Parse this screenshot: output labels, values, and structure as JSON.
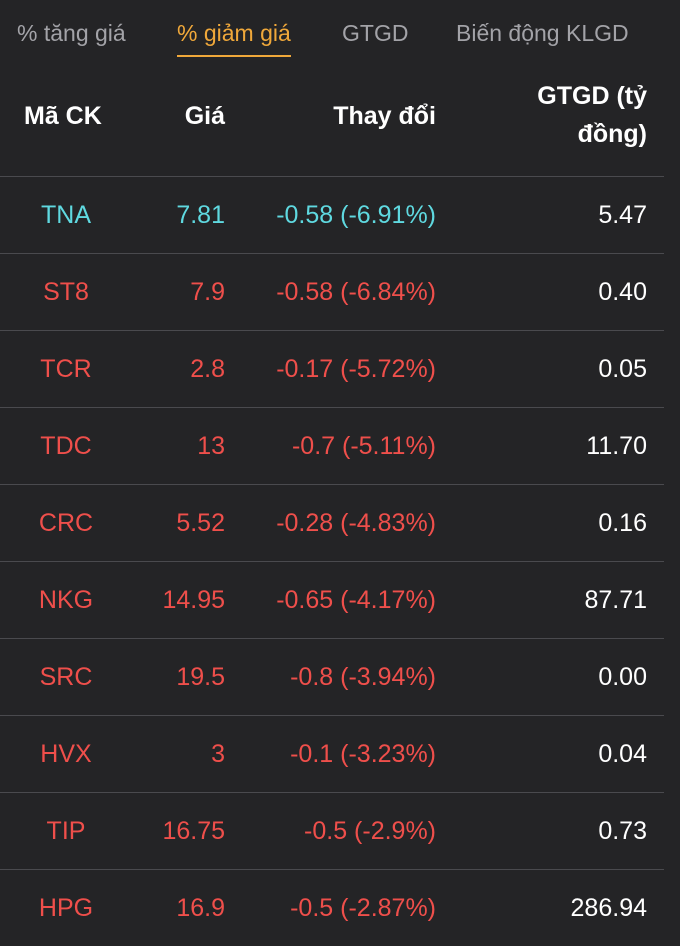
{
  "tabs": [
    {
      "label": "% tăng giá"
    },
    {
      "label": "% giảm giá"
    },
    {
      "label": "GTGD"
    },
    {
      "label": "Biến động KLGD"
    }
  ],
  "active_tab": "% giảm giá",
  "colors": {
    "background": "#242426",
    "active_tab": "#f0a83a",
    "inactive_tab": "#a3a3a8",
    "floor_price": "#5fd9e0",
    "decrease": "#ef4f4b",
    "value_text": "#ffffff",
    "divider": "#4a4a4e"
  },
  "table": {
    "headers": {
      "symbol": "Mã CK",
      "price": "Giá",
      "change": "Thay đổi",
      "value_line1": "GTGD (tỷ",
      "value_line2": "đồng)"
    },
    "rows": [
      {
        "symbol": "TNA",
        "price": "7.81",
        "change": "-0.58 (-6.91%)",
        "value": "5.47",
        "status": "floor"
      },
      {
        "symbol": "ST8",
        "price": "7.9",
        "change": "-0.58 (-6.84%)",
        "value": "0.40",
        "status": "decrease"
      },
      {
        "symbol": "TCR",
        "price": "2.8",
        "change": "-0.17 (-5.72%)",
        "value": "0.05",
        "status": "decrease"
      },
      {
        "symbol": "TDC",
        "price": "13",
        "change": "-0.7 (-5.11%)",
        "value": "11.70",
        "status": "decrease"
      },
      {
        "symbol": "CRC",
        "price": "5.52",
        "change": "-0.28 (-4.83%)",
        "value": "0.16",
        "status": "decrease"
      },
      {
        "symbol": "NKG",
        "price": "14.95",
        "change": "-0.65 (-4.17%)",
        "value": "87.71",
        "status": "decrease"
      },
      {
        "symbol": "SRC",
        "price": "19.5",
        "change": "-0.8 (-3.94%)",
        "value": "0.00",
        "status": "decrease"
      },
      {
        "symbol": "HVX",
        "price": "3",
        "change": "-0.1 (-3.23%)",
        "value": "0.04",
        "status": "decrease"
      },
      {
        "symbol": "TIP",
        "price": "16.75",
        "change": "-0.5 (-2.9%)",
        "value": "0.73",
        "status": "decrease"
      },
      {
        "symbol": "HPG",
        "price": "16.9",
        "change": "-0.5 (-2.87%)",
        "value": "286.94",
        "status": "decrease"
      }
    ]
  }
}
